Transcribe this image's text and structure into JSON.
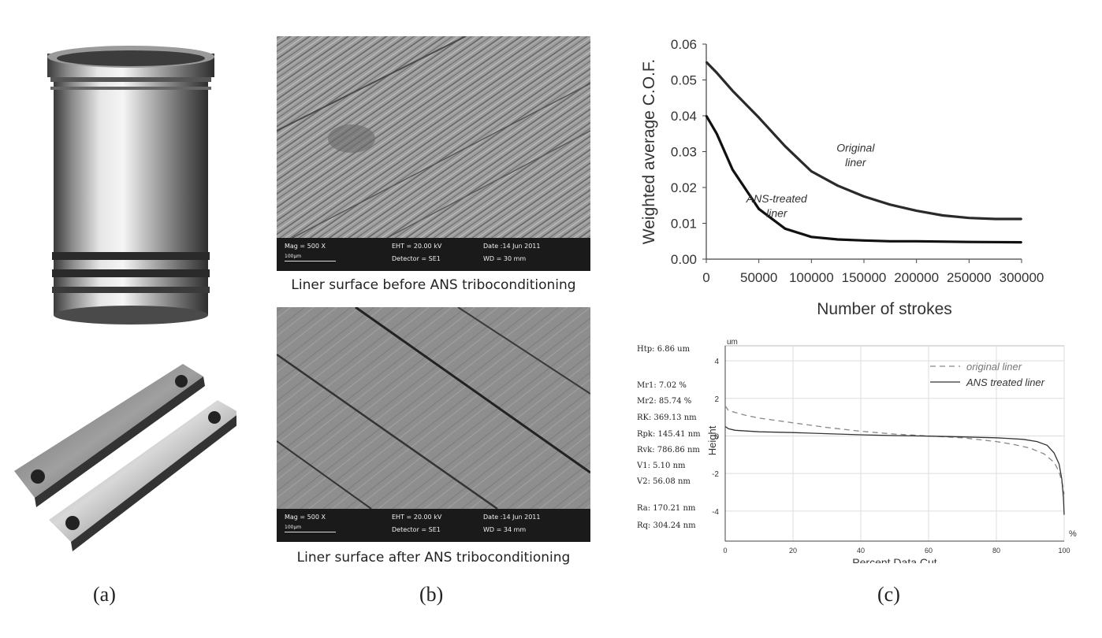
{
  "panels": {
    "a": {
      "label": "(a)"
    },
    "b": {
      "label": "(b)",
      "images": [
        {
          "caption": "Liner surface before ANS triboconditioning",
          "mag": "Mag =    500 X",
          "scale": "100μm",
          "eht": "EHT = 20.00 kV",
          "detector": "Detector = SE1",
          "date": "Date :14 Jun 2011",
          "wd": "WD =   30 mm"
        },
        {
          "caption": "Liner surface after ANS triboconditioning",
          "mag": "Mag =    500 X",
          "scale": "100μm",
          "eht": "EHT = 20.00 kV",
          "detector": "Detector = SE1",
          "date": "Date :14 Jun 2011",
          "wd": "WD =   34 mm"
        }
      ]
    },
    "c": {
      "label": "(c)"
    }
  },
  "chart_data": [
    {
      "type": "line",
      "title": "",
      "xlabel": "Number of strokes",
      "ylabel": "Weighted average C.O.F.",
      "xlim": [
        0,
        300000
      ],
      "ylim": [
        0,
        0.06
      ],
      "xticks": [
        0,
        50000,
        100000,
        150000,
        200000,
        250000,
        300000
      ],
      "xtick_labels": [
        "0",
        "50000",
        "100000",
        "150000",
        "200000",
        "250000",
        "300000"
      ],
      "yticks": [
        0,
        0.01,
        0.02,
        0.03,
        0.04,
        0.05,
        0.06
      ],
      "ytick_labels": [
        "0.00",
        "0.01",
        "0.02",
        "0.03",
        "0.04",
        "0.05",
        "0.06"
      ],
      "grid": false,
      "annotations": [
        {
          "text": "Original",
          "x": 142000,
          "y": 0.03
        },
        {
          "text": "liner",
          "x": 142000,
          "y": 0.0259
        },
        {
          "text": "ANS-treated",
          "x": 67000,
          "y": 0.0158
        },
        {
          "text": "liner",
          "x": 67000,
          "y": 0.0118
        }
      ],
      "series": [
        {
          "color": "#2a2a2a",
          "x": [
            0,
            10000,
            25000,
            50000,
            75000,
            100000,
            125000,
            150000,
            175000,
            200000,
            225000,
            250000,
            275000,
            300000
          ],
          "values": [
            0.055,
            0.052,
            0.047,
            0.0395,
            0.0315,
            0.0245,
            0.0205,
            0.0175,
            0.0152,
            0.0135,
            0.0122,
            0.0115,
            0.0112,
            0.0112
          ]
        },
        {
          "color": "#111111",
          "x": [
            0,
            10000,
            25000,
            50000,
            75000,
            100000,
            125000,
            150000,
            175000,
            200000,
            250000,
            300000
          ],
          "values": [
            0.04,
            0.035,
            0.025,
            0.014,
            0.0085,
            0.0062,
            0.0055,
            0.0052,
            0.005,
            0.005,
            0.0048,
            0.0047
          ]
        }
      ]
    },
    {
      "type": "line",
      "title": "",
      "xlabel": "Percent Data Cut",
      "ylabel": "Height",
      "yunit": "um",
      "xunit": "%",
      "xlim": [
        0,
        100
      ],
      "ylim": [
        -5.6,
        4.8
      ],
      "xticks": [
        0,
        20,
        40,
        60,
        80,
        100
      ],
      "yticks": [
        4,
        2,
        0,
        -2,
        -4
      ],
      "grid": true,
      "legend_position": "top-right",
      "series": [
        {
          "name": "original liner",
          "style": "dashed",
          "color": "#888888",
          "x": [
            0,
            1,
            3,
            6,
            10,
            20,
            30,
            40,
            50,
            60,
            70,
            80,
            85,
            90,
            94,
            97,
            98.5,
            99.5,
            100
          ],
          "values": [
            1.6,
            1.35,
            1.25,
            1.1,
            0.95,
            0.7,
            0.45,
            0.25,
            0.1,
            0.0,
            -0.1,
            -0.3,
            -0.45,
            -0.65,
            -0.95,
            -1.4,
            -1.9,
            -2.6,
            -3.1
          ]
        },
        {
          "name": "ANS treated liner",
          "style": "solid",
          "color": "#333333",
          "x": [
            0,
            1,
            3,
            10,
            20,
            30,
            40,
            50,
            60,
            70,
            80,
            88,
            92,
            95,
            97,
            98.5,
            99.3,
            99.8,
            100
          ],
          "values": [
            0.5,
            0.38,
            0.3,
            0.22,
            0.18,
            0.12,
            0.06,
            0.02,
            -0.01,
            -0.05,
            -0.1,
            -0.18,
            -0.3,
            -0.5,
            -0.9,
            -1.5,
            -2.3,
            -3.3,
            -4.2
          ]
        }
      ],
      "stats": [
        "Htp: 6.86 um",
        "Mr1: 7.02 %",
        "Mr2: 85.74 %",
        "RK: 369.13 nm",
        "Rpk: 145.41 nm",
        "Rvk: 786.86 nm",
        "V1: 5.10 nm",
        "V2: 56.08 nm",
        "Ra: 170.21 nm",
        "Rq: 304.24 nm"
      ]
    }
  ]
}
